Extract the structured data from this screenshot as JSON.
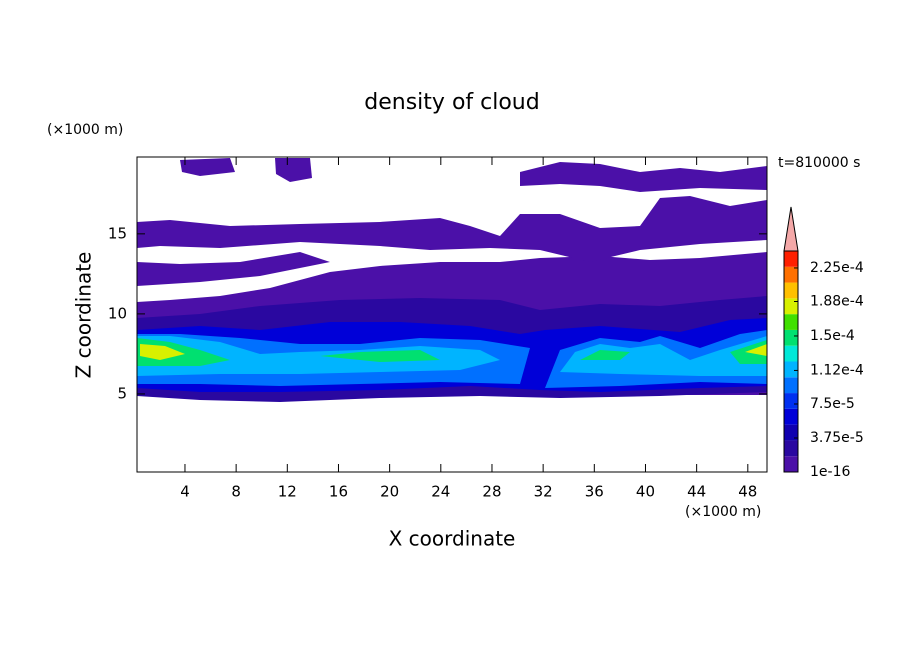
{
  "chart_data": {
    "type": "contour",
    "title": "density of cloud",
    "xlabel": "X coordinate",
    "ylabel": "Z coordinate",
    "xunit": "(×1000 m)",
    "yunit": "(×1000 m)",
    "annotation": "t=810000 s",
    "xlim": [
      0.25,
      49.5
    ],
    "ylim": [
      0.125,
      19.8
    ],
    "xticks": [
      4,
      8,
      12,
      16,
      20,
      24,
      28,
      32,
      36,
      40,
      44,
      48
    ],
    "yticks": [
      5,
      10,
      15
    ],
    "colorbar": {
      "lim": [
        1e-16,
        0.0002437
      ],
      "ticks": [
        1e-16,
        {
          "value": 3.75e-05,
          "label": "3.75e-5"
        },
        {
          "value": 7.5e-05,
          "label": "7.5e-5"
        },
        {
          "value": 0.000112,
          "label": "1.12e-4"
        },
        {
          "value": 0.00015,
          "label": "1.5e-4"
        },
        {
          "value": 0.000188,
          "label": "1.88e-4"
        },
        {
          "value": 0.000225,
          "label": "2.25e-4"
        }
      ],
      "colors": [
        "#4b10a8",
        "#2a08a0",
        "#1000b0",
        "#0000d8",
        "#0030f0",
        "#0070ff",
        "#00b4ff",
        "#00e8d8",
        "#00e070",
        "#40e000",
        "#d8f000",
        "#ffc000",
        "#ff7000",
        "#ff2000"
      ],
      "extend_color": "#f4a8a8"
    }
  }
}
